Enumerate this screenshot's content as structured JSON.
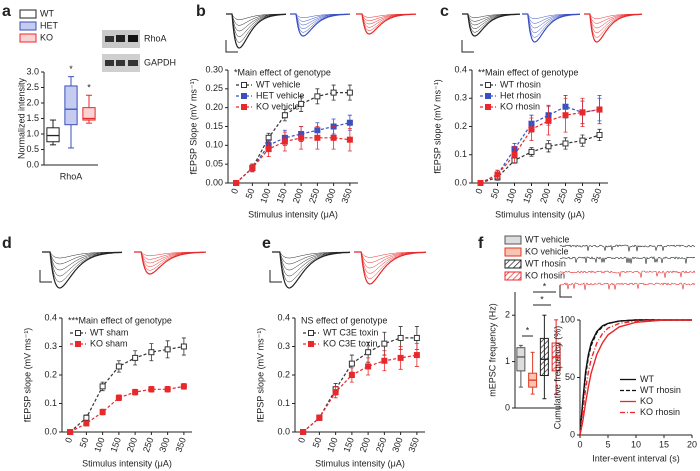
{
  "chart_data": [
    {
      "type": "box",
      "label": "a",
      "ylabel": "Normalized intensity",
      "categories": [
        "RhoA"
      ],
      "blot_labels": [
        "RhoA",
        "GAPDH"
      ],
      "ylim": [
        0,
        3
      ],
      "yticks": [
        {
          "value": 0,
          "label": "0.0"
        },
        {
          "value": 0.5,
          "label": "0.5"
        },
        {
          "value": 1,
          "label": "1.0"
        },
        {
          "value": 1.5,
          "label": "1.5"
        },
        {
          "value": 2,
          "label": "2.0"
        },
        {
          "value": 2.5,
          "label": "2.5"
        },
        {
          "value": 3,
          "label": "3.0"
        }
      ],
      "legend": "above",
      "series": [
        {
          "name": "WT",
          "color": "#222222",
          "fill": "#ffffff",
          "min": 0.65,
          "q1": 0.75,
          "median": 0.95,
          "q3": 1.2,
          "max": 1.45
        },
        {
          "name": "HET",
          "color": "#3a4fc0",
          "fill": "#c5ccf0",
          "min": 0.55,
          "q1": 1.3,
          "median": 1.8,
          "q3": 2.55,
          "max": 2.85,
          "annotation": "*"
        },
        {
          "name": "KO",
          "color": "#e8282a",
          "fill": "#fbd3d3",
          "min": 1.35,
          "q1": 1.45,
          "median": 1.5,
          "q3": 1.85,
          "max": 2.25,
          "annotation": "*"
        }
      ]
    },
    {
      "type": "line",
      "label": "b",
      "title": "*Main effect of genotype",
      "xlabel": "Stimulus intensity (μA)",
      "ylabel": "fEPSP Slope (mV ms⁻¹)",
      "x": [
        0,
        50,
        100,
        150,
        200,
        250,
        300,
        350
      ],
      "xlim": [
        -25,
        375
      ],
      "xticks": [
        0,
        50,
        100,
        150,
        200,
        250,
        300,
        350
      ],
      "ylim": [
        0,
        0.3
      ],
      "yticks": [
        {
          "value": 0,
          "label": "0.00"
        },
        {
          "value": 0.05,
          "label": "0.05"
        },
        {
          "value": 0.1,
          "label": "0.10"
        },
        {
          "value": 0.15,
          "label": "0.15"
        },
        {
          "value": 0.2,
          "label": "0.20"
        },
        {
          "value": 0.25,
          "label": "0.25"
        },
        {
          "value": 0.3,
          "label": "0.30"
        }
      ],
      "legend": "upper left",
      "series": [
        {
          "name": "WT vehicle",
          "color": "#333333",
          "marker": "open",
          "values": [
            0,
            0.04,
            0.12,
            0.18,
            0.21,
            0.23,
            0.24,
            0.24
          ],
          "errors": [
            0.005,
            0.01,
            0.012,
            0.015,
            0.02,
            0.02,
            0.02,
            0.02
          ]
        },
        {
          "name": "HET vehicle",
          "color": "#3a4fc0",
          "marker": "filled",
          "values": [
            0,
            0.04,
            0.1,
            0.12,
            0.13,
            0.14,
            0.15,
            0.16
          ],
          "errors": [
            0.005,
            0.01,
            0.015,
            0.02,
            0.02,
            0.02,
            0.02,
            0.02
          ]
        },
        {
          "name": "KO vehicle",
          "color": "#e8282a",
          "marker": "filled",
          "values": [
            0,
            0.04,
            0.09,
            0.11,
            0.12,
            0.12,
            0.12,
            0.115
          ],
          "errors": [
            0.005,
            0.01,
            0.02,
            0.025,
            0.03,
            0.03,
            0.03,
            0.03
          ]
        }
      ]
    },
    {
      "type": "line",
      "label": "c",
      "title": "**Main effect of genotype",
      "xlabel": "Stimulus intensity (μA)",
      "ylabel": "fEPSP slope (mV ms⁻¹)",
      "x": [
        0,
        50,
        100,
        150,
        200,
        250,
        300,
        350
      ],
      "xlim": [
        -25,
        375
      ],
      "xticks": [
        0,
        50,
        100,
        150,
        200,
        250,
        300,
        350
      ],
      "ylim": [
        0,
        0.4
      ],
      "yticks": [
        {
          "value": 0,
          "label": "0.0"
        },
        {
          "value": 0.1,
          "label": "0.1"
        },
        {
          "value": 0.2,
          "label": "0.2"
        },
        {
          "value": 0.3,
          "label": "0.3"
        },
        {
          "value": 0.4,
          "label": "0.4"
        }
      ],
      "legend": "upper left",
      "series": [
        {
          "name": "WT rhosin",
          "color": "#333333",
          "marker": "open",
          "values": [
            0,
            0.02,
            0.08,
            0.11,
            0.13,
            0.14,
            0.15,
            0.17
          ],
          "errors": [
            0.005,
            0.01,
            0.01,
            0.015,
            0.02,
            0.02,
            0.02,
            0.02
          ]
        },
        {
          "name": "Het rhosin",
          "color": "#3a4fc0",
          "marker": "filled",
          "values": [
            0,
            0.03,
            0.12,
            0.21,
            0.24,
            0.27,
            0.25,
            0.26
          ],
          "errors": [
            0.005,
            0.015,
            0.02,
            0.03,
            0.035,
            0.04,
            0.04,
            0.04
          ]
        },
        {
          "name": "KO rhosin",
          "color": "#e8282a",
          "marker": "filled",
          "values": [
            0,
            0.03,
            0.1,
            0.19,
            0.22,
            0.24,
            0.25,
            0.26
          ],
          "errors": [
            0.005,
            0.015,
            0.03,
            0.04,
            0.05,
            0.06,
            0.05,
            0.05
          ]
        }
      ]
    },
    {
      "type": "line",
      "label": "d",
      "title": "***Main effect of genotype",
      "xlabel": "Stimulus intensity (μA)",
      "ylabel": "fEPSP slope (mV ms⁻¹)",
      "x": [
        0,
        50,
        100,
        150,
        200,
        250,
        300,
        350
      ],
      "xlim": [
        -25,
        375
      ],
      "xticks": [
        0,
        50,
        100,
        150,
        200,
        250,
        300,
        350
      ],
      "ylim": [
        0,
        0.4
      ],
      "yticks": [
        {
          "value": 0,
          "label": "0.0"
        },
        {
          "value": 0.1,
          "label": "0.1"
        },
        {
          "value": 0.2,
          "label": "0.2"
        },
        {
          "value": 0.3,
          "label": "0.3"
        },
        {
          "value": 0.4,
          "label": "0.4"
        }
      ],
      "legend": "upper left",
      "series": [
        {
          "name": "WT sham",
          "color": "#333333",
          "marker": "open",
          "values": [
            0,
            0.05,
            0.16,
            0.23,
            0.26,
            0.28,
            0.29,
            0.3
          ],
          "errors": [
            0.005,
            0.01,
            0.015,
            0.02,
            0.025,
            0.03,
            0.03,
            0.03
          ]
        },
        {
          "name": "KO sham",
          "color": "#e8282a",
          "marker": "filled",
          "values": [
            0,
            0.03,
            0.07,
            0.12,
            0.14,
            0.15,
            0.15,
            0.16
          ],
          "errors": [
            0.005,
            0.005,
            0.01,
            0.01,
            0.01,
            0.01,
            0.01,
            0.01
          ]
        }
      ]
    },
    {
      "type": "line",
      "label": "e",
      "title": "NS effect of genotype",
      "xlabel": "Stimulus intensity (μA)",
      "ylabel": "fEPSP slope (mV ms⁻¹)",
      "x": [
        0,
        50,
        100,
        150,
        200,
        250,
        300,
        350
      ],
      "xlim": [
        -25,
        375
      ],
      "xticks": [
        0,
        50,
        100,
        150,
        200,
        250,
        300,
        350
      ],
      "ylim": [
        0,
        0.4
      ],
      "yticks": [
        {
          "value": 0,
          "label": "0.0"
        },
        {
          "value": 0.1,
          "label": "0.1"
        },
        {
          "value": 0.2,
          "label": "0.2"
        },
        {
          "value": 0.3,
          "label": "0.3"
        },
        {
          "value": 0.4,
          "label": "0.4"
        }
      ],
      "legend": "upper left",
      "series": [
        {
          "name": "WT C3E toxin",
          "color": "#333333",
          "marker": "open",
          "values": [
            0,
            0.05,
            0.15,
            0.24,
            0.28,
            0.31,
            0.33,
            0.33
          ],
          "errors": [
            0.005,
            0.01,
            0.02,
            0.03,
            0.035,
            0.04,
            0.04,
            0.04
          ]
        },
        {
          "name": "KO C3E toxin",
          "color": "#e8282a",
          "marker": "filled",
          "values": [
            0,
            0.05,
            0.14,
            0.2,
            0.23,
            0.25,
            0.26,
            0.27
          ],
          "errors": [
            0.005,
            0.01,
            0.02,
            0.025,
            0.03,
            0.035,
            0.04,
            0.04
          ]
        }
      ]
    },
    {
      "type": "box",
      "label": "f",
      "ylabel": "mEPSC frequency (Hz)",
      "ylim": [
        0,
        2.5
      ],
      "yticks": [
        0,
        1,
        2
      ],
      "legend": "above",
      "annotations": [
        "*",
        "*",
        "*"
      ],
      "series": [
        {
          "name": "WT vehicle",
          "color": "#555555",
          "fill": "#dddddd",
          "min": 0.45,
          "q1": 0.8,
          "median": 1.1,
          "q3": 1.3,
          "max": 1.35
        },
        {
          "name": "KO vehicle",
          "color": "#e03a20",
          "fill": "#f9c4b4",
          "min": 0.3,
          "q1": 0.45,
          "median": 0.6,
          "q3": 0.75,
          "max": 1.2
        },
        {
          "name": "WT rhosin",
          "color": "#222222",
          "fill": "#ffffff",
          "hatch": true,
          "min": 0.2,
          "q1": 0.7,
          "median": 1.05,
          "q3": 1.5,
          "max": 2.0
        },
        {
          "name": "KO rhosin",
          "color": "#e8282a",
          "fill": "#ffffff",
          "hatch": true,
          "min": 0.3,
          "q1": 0.8,
          "median": 1.1,
          "q3": 1.4,
          "max": 1.9
        }
      ]
    },
    {
      "type": "line",
      "xlabel": "Inter-event interval (s)",
      "ylabel": "Cumulative frequency (%)",
      "x": [
        0,
        0.5,
        1,
        1.5,
        2,
        3,
        4,
        5,
        7,
        10,
        15,
        20
      ],
      "xlim": [
        0,
        20
      ],
      "xticks": [
        0,
        5,
        10,
        15,
        20
      ],
      "ylim": [
        0,
        100
      ],
      "yticks": [
        0,
        50,
        100
      ],
      "legend": "center right",
      "series": [
        {
          "name": "WT",
          "color": "#111111",
          "marker": "none",
          "linestyle": "solid",
          "values": [
            0,
            30,
            55,
            70,
            80,
            90,
            95,
            97,
            99,
            100,
            100,
            100
          ]
        },
        {
          "name": "WT rhosin",
          "color": "#111111",
          "marker": "none",
          "linestyle": "dashed",
          "values": [
            0,
            28,
            52,
            68,
            78,
            89,
            94,
            97,
            99,
            100,
            100,
            100
          ]
        },
        {
          "name": "KO",
          "color": "#e8282a",
          "marker": "none",
          "linestyle": "solid",
          "values": [
            0,
            12,
            28,
            42,
            54,
            70,
            80,
            87,
            94,
            98,
            100,
            100
          ]
        },
        {
          "name": "KO rhosin",
          "color": "#e8282a",
          "marker": "none",
          "linestyle": "dashdot",
          "values": [
            0,
            20,
            40,
            55,
            66,
            80,
            88,
            93,
            97,
            99,
            100,
            100
          ]
        }
      ]
    }
  ]
}
